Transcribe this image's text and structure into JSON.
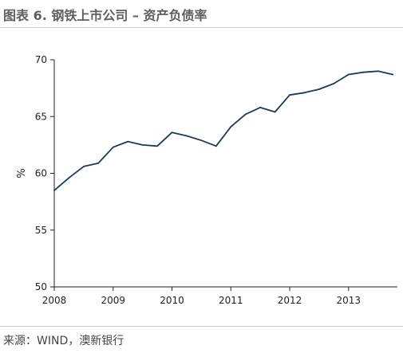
{
  "title": "图表 6. 钢铁上市公司 – 资产负债率",
  "source": "来源：WIND，澳新银行",
  "chart_data": {
    "type": "line",
    "ylabel": "%",
    "ylim": [
      50,
      70
    ],
    "yticks": [
      50,
      55,
      60,
      65,
      70
    ],
    "xlim": [
      2008.0,
      2013.83
    ],
    "xticks": [
      {
        "value": 2008,
        "label": "2008"
      },
      {
        "value": 2009,
        "label": "2009"
      },
      {
        "value": 2010,
        "label": "2010"
      },
      {
        "value": 2011,
        "label": "2011"
      },
      {
        "value": 2012,
        "label": "2012"
      },
      {
        "value": 2013,
        "label": "2013"
      }
    ],
    "grid": false,
    "line_color": "#1b3a5c",
    "series": [
      {
        "x": [
          2008.0,
          2008.25,
          2008.5,
          2008.75,
          2009.0,
          2009.25,
          2009.5,
          2009.75,
          2010.0,
          2010.25,
          2010.5,
          2010.75,
          2011.0,
          2011.25,
          2011.5,
          2011.75,
          2012.0,
          2012.25,
          2012.5,
          2012.75,
          2013.0,
          2013.25,
          2013.5,
          2013.75
        ],
        "y": [
          58.5,
          59.6,
          60.6,
          60.9,
          62.3,
          62.8,
          62.5,
          62.4,
          63.6,
          63.3,
          62.9,
          62.4,
          64.1,
          65.2,
          65.8,
          65.4,
          66.9,
          67.1,
          67.4,
          67.9,
          68.7,
          68.9,
          69.0,
          68.7
        ]
      }
    ]
  }
}
